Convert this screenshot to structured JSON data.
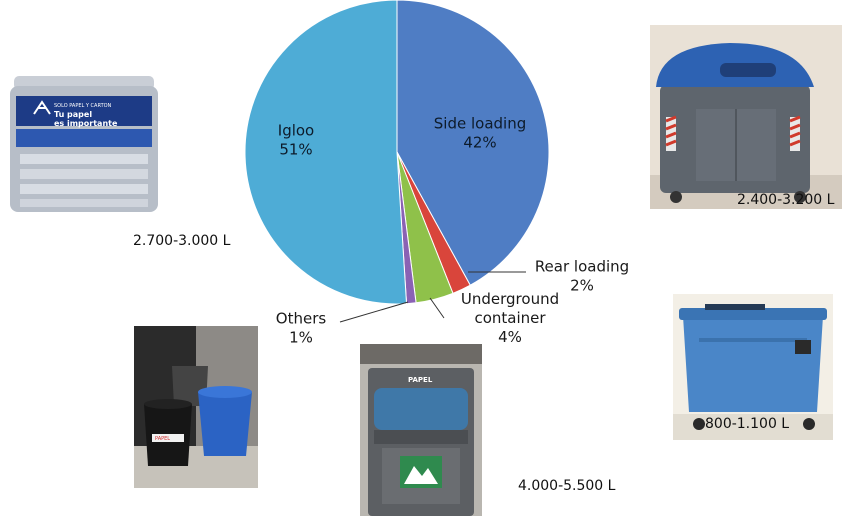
{
  "chart_data": {
    "type": "pie",
    "title": "",
    "start_angle_deg": 0,
    "direction": "clockwise",
    "legend": "none",
    "slices": [
      {
        "name": "Side loading",
        "value": 42,
        "label": "42%",
        "color": "#4f7dc4"
      },
      {
        "name": "Rear loading",
        "value": 2,
        "label": "2%",
        "color": "#d9453b"
      },
      {
        "name": "Underground container",
        "name_lines": [
          "Underground",
          "container"
        ],
        "value": 4,
        "label": "4%",
        "color": "#8fc14a"
      },
      {
        "name": "Others",
        "value": 1,
        "label": "1%",
        "color": "#8a62b4"
      },
      {
        "name": "Igloo",
        "value": 51,
        "label": "51%",
        "color": "#4eacd6"
      }
    ]
  },
  "captions": {
    "igloo": "2.700-3.000 L",
    "side_loading": "2.400-3.200 L",
    "rear_loading": "800-1.100 L",
    "underground": "4.000-5.500 L"
  },
  "photos": {
    "igloo": {
      "icon": "igloo-container-photo",
      "sign_lines": [
        "SOLO PAPEL Y CARTON",
        "Tu papel",
        "es importante"
      ]
    },
    "side_loading": {
      "icon": "side-loading-container-photo"
    },
    "rear_loading": {
      "icon": "rear-loading-container-photo"
    },
    "underground": {
      "icon": "underground-container-photo",
      "sign": "PAPEL"
    },
    "others": {
      "icon": "bins-photo",
      "tag": "PAPEL"
    }
  }
}
